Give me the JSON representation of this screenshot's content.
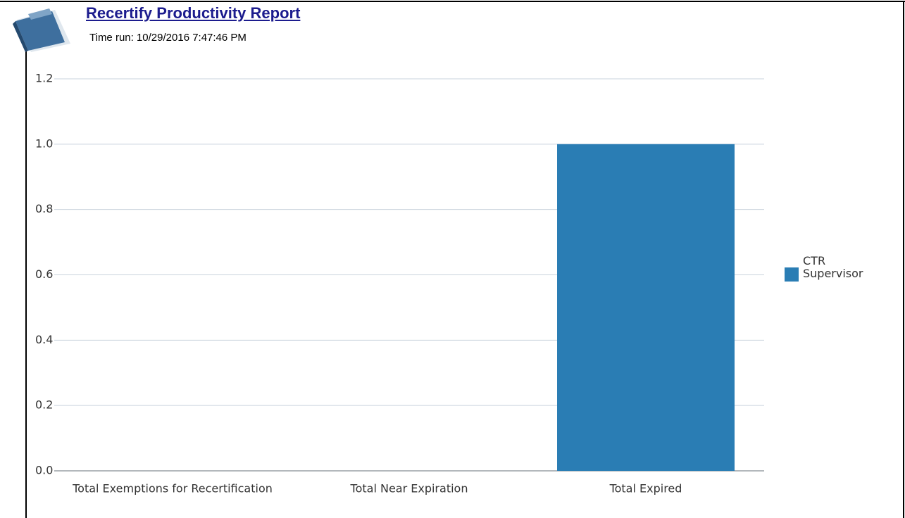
{
  "header": {
    "title": "Recertify Productivity Report",
    "time_run": "Time run: 10/29/2016 7:47:46 PM"
  },
  "chart_data": {
    "type": "bar",
    "categories": [
      "Total Exemptions for Recertification",
      "Total Near Expiration",
      "Total Expired"
    ],
    "series": [
      {
        "name": "CTR Supervisor",
        "color": "#2a7db4",
        "values": [
          0,
          0,
          1
        ]
      }
    ],
    "ylim": [
      0,
      1.2
    ],
    "yticks": [
      {
        "value": 0,
        "label": "0.0"
      },
      0.2,
      0.4,
      0.6,
      0.8,
      {
        "value": 1,
        "label": "1.0"
      },
      1.2
    ],
    "grid": true,
    "legend": "right"
  }
}
